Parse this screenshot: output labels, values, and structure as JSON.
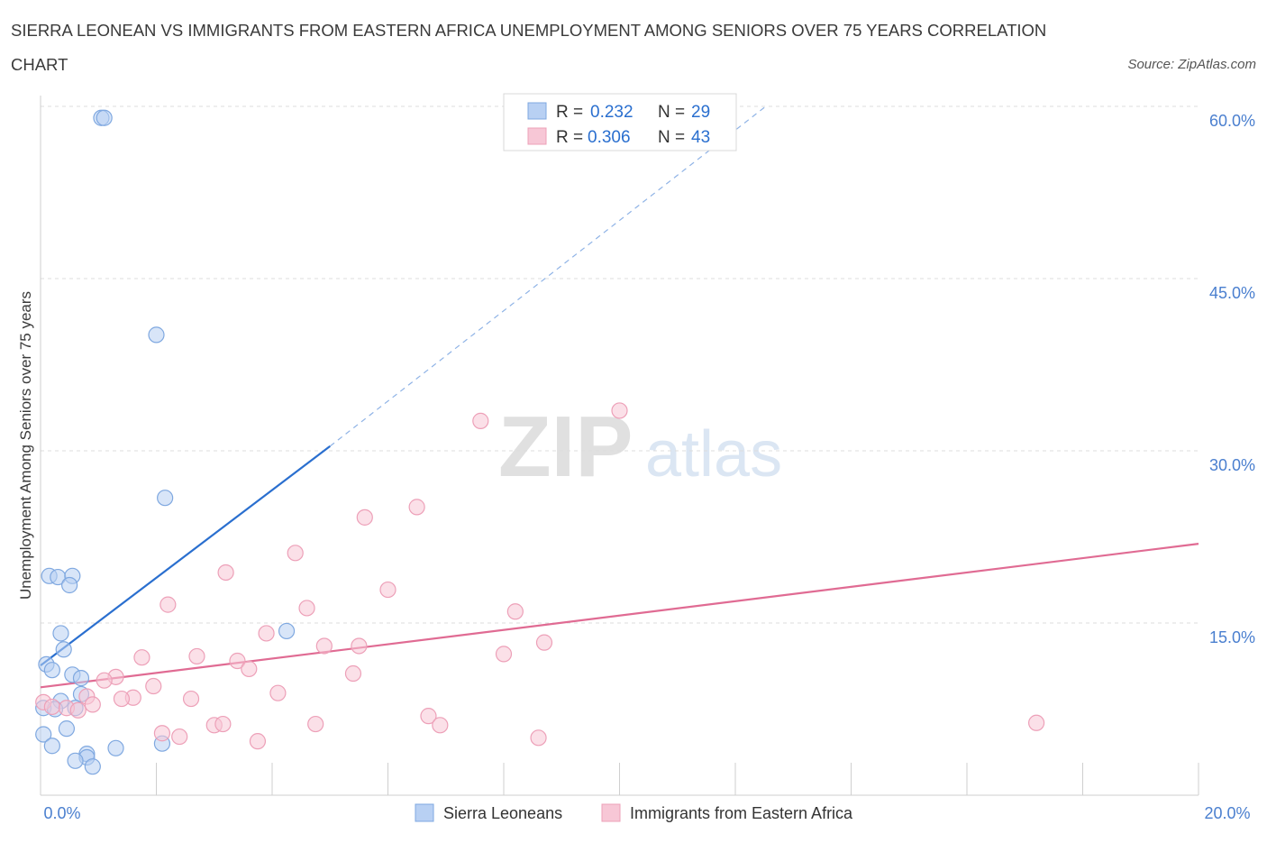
{
  "chart_data": {
    "type": "scatter",
    "title": "SIERRA LEONEAN VS IMMIGRANTS FROM EASTERN AFRICA UNEMPLOYMENT AMONG SENIORS OVER 75 YEARS CORRELATION CHART",
    "title_line1": "SIERRA LEONEAN VS IMMIGRANTS FROM EASTERN AFRICA UNEMPLOYMENT AMONG SENIORS OVER 75 YEARS CORRELATION",
    "title_line2": "CHART",
    "source": "Source: ZipAtlas.com",
    "watermark_zip": "ZIP",
    "watermark_atlas": "atlas",
    "ylabel": "Unemployment Among Seniors over 75 years",
    "xlabel": "",
    "xlim": [
      0,
      20
    ],
    "ylim": [
      0,
      60
    ],
    "x_tick_labels": [
      {
        "value": 0,
        "label": "0.0%"
      },
      {
        "value": 20,
        "label": "20.0%"
      }
    ],
    "y_tick_labels": [
      {
        "value": 15,
        "label": "15.0%"
      },
      {
        "value": 30,
        "label": "30.0%"
      },
      {
        "value": 45,
        "label": "45.0%"
      },
      {
        "value": 60,
        "label": "60.0%"
      }
    ],
    "grid": true,
    "legend_position": "bottom-center",
    "stats_box": [
      {
        "r_label": "R = ",
        "r_value": "0.232",
        "n_label": "N = ",
        "n_value": "29"
      },
      {
        "r_label": "R = ",
        "r_value": "0.306",
        "n_label": "N = ",
        "n_value": "43"
      }
    ],
    "series": [
      {
        "name": "Sierra Leoneans",
        "color": "#7fa8e0",
        "fill": "#b8d0f3",
        "line_color": "#2a6fcf",
        "trend": {
          "x0": 0.0,
          "y0": 11.3,
          "x1": 5.0,
          "y1": 30.4,
          "dash_x1": 12.5,
          "dash_y1": 59.9
        },
        "points": [
          {
            "x": 1.05,
            "y": 59.0
          },
          {
            "x": 1.1,
            "y": 59.0
          },
          {
            "x": 2.0,
            "y": 40.1
          },
          {
            "x": 2.15,
            "y": 25.9
          },
          {
            "x": 0.15,
            "y": 19.1
          },
          {
            "x": 0.3,
            "y": 19.0
          },
          {
            "x": 0.55,
            "y": 19.1
          },
          {
            "x": 0.5,
            "y": 18.3
          },
          {
            "x": 0.35,
            "y": 14.1
          },
          {
            "x": 4.25,
            "y": 14.3
          },
          {
            "x": 0.4,
            "y": 12.7
          },
          {
            "x": 0.1,
            "y": 11.4
          },
          {
            "x": 0.2,
            "y": 10.9
          },
          {
            "x": 0.55,
            "y": 10.5
          },
          {
            "x": 0.7,
            "y": 10.2
          },
          {
            "x": 0.7,
            "y": 8.8
          },
          {
            "x": 0.35,
            "y": 8.2
          },
          {
            "x": 0.05,
            "y": 7.6
          },
          {
            "x": 0.25,
            "y": 7.5
          },
          {
            "x": 0.6,
            "y": 7.6
          },
          {
            "x": 0.45,
            "y": 5.8
          },
          {
            "x": 0.05,
            "y": 5.3
          },
          {
            "x": 0.2,
            "y": 4.3
          },
          {
            "x": 1.3,
            "y": 4.1
          },
          {
            "x": 2.1,
            "y": 4.5
          },
          {
            "x": 0.8,
            "y": 3.6
          },
          {
            "x": 0.8,
            "y": 3.3
          },
          {
            "x": 0.6,
            "y": 3.0
          },
          {
            "x": 0.9,
            "y": 2.5
          }
        ]
      },
      {
        "name": "Immigrants from Eastern Africa",
        "color": "#eda0b8",
        "fill": "#f7c7d6",
        "line_color": "#e06b93",
        "trend": {
          "x0": 0.0,
          "y0": 9.4,
          "x1": 20.0,
          "y1": 21.9
        },
        "points": [
          {
            "x": 10.0,
            "y": 33.5
          },
          {
            "x": 7.6,
            "y": 32.6
          },
          {
            "x": 6.5,
            "y": 25.1
          },
          {
            "x": 5.6,
            "y": 24.2
          },
          {
            "x": 4.4,
            "y": 21.1
          },
          {
            "x": 3.2,
            "y": 19.4
          },
          {
            "x": 6.0,
            "y": 17.9
          },
          {
            "x": 2.2,
            "y": 16.6
          },
          {
            "x": 4.6,
            "y": 16.3
          },
          {
            "x": 8.2,
            "y": 16.0
          },
          {
            "x": 3.9,
            "y": 14.1
          },
          {
            "x": 4.9,
            "y": 13.0
          },
          {
            "x": 5.5,
            "y": 13.0
          },
          {
            "x": 8.7,
            "y": 13.3
          },
          {
            "x": 8.0,
            "y": 12.3
          },
          {
            "x": 1.75,
            "y": 12.0
          },
          {
            "x": 2.7,
            "y": 12.1
          },
          {
            "x": 3.4,
            "y": 11.7
          },
          {
            "x": 3.6,
            "y": 11.0
          },
          {
            "x": 5.4,
            "y": 10.6
          },
          {
            "x": 1.3,
            "y": 10.3
          },
          {
            "x": 1.1,
            "y": 10.0
          },
          {
            "x": 1.95,
            "y": 9.5
          },
          {
            "x": 4.1,
            "y": 8.9
          },
          {
            "x": 0.8,
            "y": 8.6
          },
          {
            "x": 1.6,
            "y": 8.5
          },
          {
            "x": 2.6,
            "y": 8.4
          },
          {
            "x": 1.4,
            "y": 8.4
          },
          {
            "x": 0.05,
            "y": 8.1
          },
          {
            "x": 0.2,
            "y": 7.7
          },
          {
            "x": 0.45,
            "y": 7.6
          },
          {
            "x": 0.65,
            "y": 7.4
          },
          {
            "x": 0.9,
            "y": 7.9
          },
          {
            "x": 6.7,
            "y": 6.9
          },
          {
            "x": 4.75,
            "y": 6.2
          },
          {
            "x": 3.0,
            "y": 6.1
          },
          {
            "x": 3.15,
            "y": 6.2
          },
          {
            "x": 6.9,
            "y": 6.1
          },
          {
            "x": 17.2,
            "y": 6.3
          },
          {
            "x": 2.1,
            "y": 5.4
          },
          {
            "x": 2.4,
            "y": 5.1
          },
          {
            "x": 3.75,
            "y": 4.7
          },
          {
            "x": 8.6,
            "y": 5.0
          }
        ]
      }
    ]
  }
}
